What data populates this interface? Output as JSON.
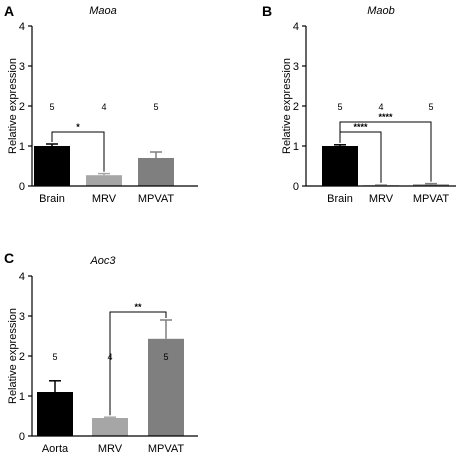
{
  "chart_data": [
    {
      "type": "bar",
      "panel": "A",
      "title": "Maoa",
      "ylabel": "Relative expression",
      "ylim": [
        0,
        4
      ],
      "yticks": [
        "0",
        "1",
        "2",
        "3",
        "4"
      ],
      "categories": [
        "Brain",
        "MRV",
        "MPVAT"
      ],
      "values": [
        1.0,
        0.27,
        0.7
      ],
      "errors": [
        0.05,
        0.04,
        0.15
      ],
      "n": [
        "5",
        "4",
        "5"
      ],
      "colors": [
        "#000000",
        "#a6a6a6",
        "#7f7f7f"
      ],
      "significance": [
        {
          "from": 0,
          "to": 1,
          "label": "*",
          "y": 1.35
        }
      ]
    },
    {
      "type": "bar",
      "panel": "B",
      "title": "Maob",
      "ylabel": "Relative expression",
      "ylim": [
        0,
        4
      ],
      "yticks": [
        "0",
        "1",
        "2",
        "3",
        "4"
      ],
      "categories": [
        "Brain",
        "MRV",
        "MPVAT"
      ],
      "values": [
        1.0,
        0.02,
        0.04
      ],
      "errors": [
        0.03,
        0.01,
        0.02
      ],
      "n": [
        "5",
        "4",
        "5"
      ],
      "colors": [
        "#000000",
        "#a6a6a6",
        "#7f7f7f"
      ],
      "significance": [
        {
          "from": 0,
          "to": 1,
          "label": "****",
          "y": 1.35
        },
        {
          "from": 0,
          "to": 2,
          "label": "****",
          "y": 1.6
        }
      ]
    },
    {
      "type": "bar",
      "panel": "C",
      "title": "Aoc3",
      "ylabel": "Relative expression",
      "ylim": [
        0,
        4
      ],
      "yticks": [
        "0",
        "1",
        "2",
        "3",
        "4"
      ],
      "categories": [
        "Aorta",
        "MRV",
        "MPVAT"
      ],
      "values": [
        1.1,
        0.45,
        2.43
      ],
      "errors": [
        0.28,
        0.02,
        0.47
      ],
      "n": [
        "5",
        "4",
        "5"
      ],
      "colors": [
        "#000000",
        "#a6a6a6",
        "#7f7f7f"
      ],
      "significance": [
        {
          "from": 1,
          "to": 2,
          "label": "**",
          "y": 3.1
        }
      ]
    }
  ]
}
